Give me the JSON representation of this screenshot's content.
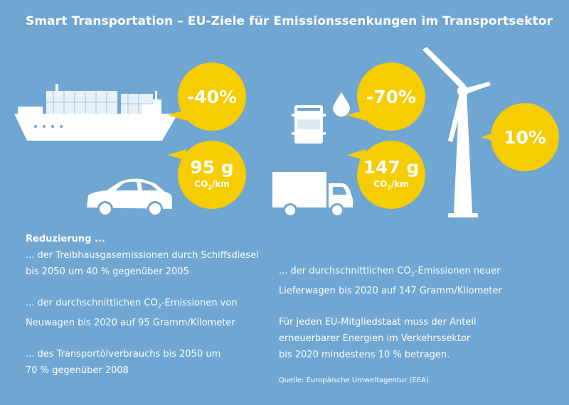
{
  "title": "Smart Transportation – EU-Ziele für Emissionssenkungen im Transportsektor",
  "bubbles": {
    "ship": "-40%",
    "oil": "-70%",
    "wind": "10%",
    "car_value": "95 g",
    "car_unit_a": "CO",
    "car_unit_b": "2",
    "car_unit_c": "/km",
    "truck_value": "147 g",
    "truck_unit_a": "CO",
    "truck_unit_b": "2",
    "truck_unit_c": "/km"
  },
  "left_text": {
    "heading": "Reduzierung ...",
    "item1_line1": "... der Treibhausgasemissionen durch Schiffsdiesel",
    "item1_line2": "bis 2050 um 40 % gegenüber 2005",
    "item2_line1_a": "... der durchschnittlichen CO",
    "item2_line1_b": "2",
    "item2_line1_c": "-Emissionen von",
    "item2_line2": "Neuwagen bis 2020 auf 95 Gramm/Kilometer",
    "item3_line1": "... des Transportölverbrauchs bis 2050 um",
    "item3_line2": "70 % gegenüber 2008"
  },
  "right_text": {
    "item1_line1_a": "... der durchschnittlichen CO",
    "item1_line1_b": "2",
    "item1_line1_c": "-Emissionen neuer",
    "item1_line2": "Lieferwagen bis 2020 auf 147 Gramm/Kilometer",
    "item2_line1": "Für jeden EU-Mitgliedstaat muss der Anteil",
    "item2_line2": "erneuerbarer Energien im Verkehrssektor",
    "item2_line3": "bis 2020 mindestens 10 % betragen."
  },
  "source": "Quelle: Europäische Umweltagentur (EEA)",
  "colors": {
    "background": "#6fa6d2",
    "bubble": "#f5cd00",
    "white": "#ffffff"
  },
  "icons": [
    "container-ship-icon",
    "car-icon",
    "oil-barrel-icon",
    "oil-drop-icon",
    "truck-icon",
    "wind-turbine-icon"
  ]
}
